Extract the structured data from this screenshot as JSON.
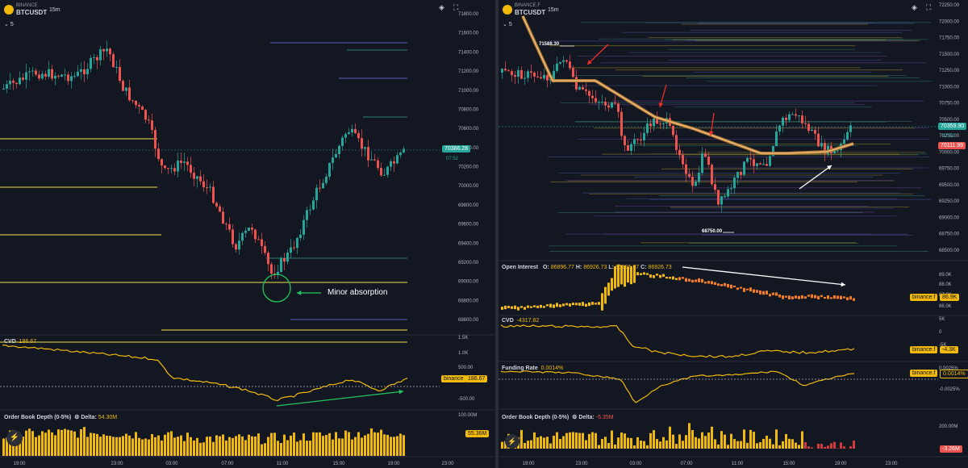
{
  "left_chart": {
    "exchange": "BINANCE",
    "symbol": "BTCUSDT",
    "interval": "15m",
    "indicator_count": "5",
    "price_axis": [
      "71800.00",
      "71600.00",
      "71400.00",
      "71200.00",
      "71000.00",
      "70800.00",
      "70600.00",
      "70400.00",
      "70200.00",
      "70000.00",
      "69800.00",
      "69600.00",
      "69400.00",
      "69200.00",
      "69000.00",
      "68800.00",
      "68600.00"
    ],
    "last_price": "70386.28",
    "countdown": "07:52",
    "annotation": "Minor absorption",
    "cvd": {
      "label": "CVD",
      "value": "186.67",
      "axis": [
        "1.5K",
        "1.0K",
        "500.00",
        "-500.00"
      ],
      "tag": "binance",
      "tag_value": "186.67"
    },
    "obd": {
      "label": "Order Book Depth (0-5%)",
      "delta_label": "Delta:",
      "delta": "54.30M",
      "axis": [
        "100.00M"
      ],
      "tag_value": "55.36M"
    },
    "time_axis": [
      "19:00",
      "23:00",
      "03:00",
      "07:00",
      "11:00",
      "15:00",
      "19:00",
      "23:00"
    ]
  },
  "right_chart": {
    "exchange": "BINANCE.F",
    "symbol": "BTCUSDT",
    "interval": "15m",
    "indicator_count": "5",
    "price_axis": [
      "72250.00",
      "72000.00",
      "71750.00",
      "71500.00",
      "71250.00",
      "71000.00",
      "70750.00",
      "70500.00",
      "70250.00",
      "70000.00",
      "69750.00",
      "69500.00",
      "69250.00",
      "69000.00",
      "68750.00",
      "68500.00"
    ],
    "high_label": "71588.30",
    "low_label": "68750.00",
    "last_price": "70359.90",
    "countdown": "07:52",
    "vwap_price": "70111.99",
    "oi": {
      "label": "Open Interest",
      "o": "86896.77",
      "h": "86926.73",
      "l": "86896.77",
      "c": "86926.73",
      "axis": [
        "89.0K",
        "88.0K",
        "87.0K",
        "86.0K"
      ],
      "tag": "binance.f",
      "tag_value": "86.9K"
    },
    "cvd": {
      "label": "CVD",
      "value": "-4317.82",
      "axis": [
        "5K",
        "0",
        "-5K"
      ],
      "tag": "binance.f",
      "tag_value": "-4.3K"
    },
    "funding": {
      "label": "Funding Rate",
      "value": "0.0014%",
      "axis": [
        "0.0025%",
        "-0.0025%"
      ],
      "tag": "binance.f",
      "tag_value": "0.0014%"
    },
    "obd": {
      "label": "Order Book Depth (0-5%)",
      "delta_label": "Delta:",
      "delta": "-5.35M",
      "axis": [
        "200.00M"
      ],
      "tag_value": "-3.26M"
    },
    "time_axis": [
      "19:00",
      "23:00",
      "03:00",
      "07:00",
      "11:00",
      "15:00",
      "19:00",
      "23:00"
    ]
  },
  "colors": {
    "bull": "#26a69a",
    "bear": "#ef5350",
    "cvd": "#f0b90b",
    "background": "#131722"
  }
}
